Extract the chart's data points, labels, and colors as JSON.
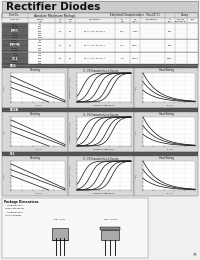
{
  "title": "Rectifier Diodes",
  "bg_color": "#f0f0f0",
  "title_bg": "#cccccc",
  "table_bg": "#ffffff",
  "graph_bg": "#e0e0e0",
  "graph_inner_bg": "#ffffff",
  "grid_color": "#aaaaaa",
  "graph_line_colors": [
    "#000000",
    "#222222",
    "#444444",
    "#666666",
    "#888888"
  ],
  "section_label_bg": "#555555",
  "section_label_color": "#ffffff",
  "page_number": "79",
  "section_labels": [
    "RO1",
    "RO2B",
    "R-1"
  ],
  "graph_row_titles": [
    [
      "Derating",
      "If - Vf Characteristics Curves",
      "Heat Rating"
    ],
    [
      "Derating",
      "If - Vf Characteristics Curves",
      "Heat Rating"
    ],
    [
      "Derating",
      "If - Vf Characteristics Curves",
      "Heat Rating"
    ]
  ],
  "table_col_headers_row1": [
    "",
    "Absolute Maximum Ratings",
    "",
    "",
    "Electrical Characteristics  (Ta=25°C)",
    "",
    "",
    "",
    "",
    "Cases",
    ""
  ],
  "table_col_headers_row2": [
    "Type No.",
    "VRRM",
    "IO",
    "IFSM",
    "Conditions",
    "VF",
    "IR",
    "Conditions",
    "trr",
    "TO-92S",
    "TO-220"
  ],
  "table_col_headers_row3": [
    "",
    "(V)",
    "(A)",
    "(A)",
    "",
    "(V)",
    "(μA)",
    "",
    "(ns)",
    "TO-220AB",
    "Pkg"
  ],
  "rows": [
    [
      "RO1A",
      "50",
      "",
      "",
      "",
      "",
      "",
      "",
      "",
      "",
      ""
    ],
    [
      "RO1B",
      "100",
      "1.0",
      "30",
      "Conditions 0.5A",
      "1.11",
      "1000",
      "at VRRM",
      "500",
      "○",
      "○"
    ],
    [
      "RO1D",
      "200",
      "",
      "",
      "",
      "",
      "",
      "",
      "",
      "",
      ""
    ],
    [
      "RO1G",
      "400",
      "",
      "",
      "",
      "",
      "",
      "",
      "",
      "",
      ""
    ],
    [
      "RO1J",
      "600",
      "",
      "",
      "",
      "",
      "",
      "",
      "",
      "",
      ""
    ],
    [
      "RO1K",
      "800",
      "",
      "",
      "",
      "",
      "",
      "",
      "",
      "",
      ""
    ],
    [
      "RO1M",
      "1000",
      "",
      "",
      "",
      "",
      "",
      "",
      "",
      "",
      ""
    ],
    [
      "RO2BA",
      "50",
      "",
      "",
      "",
      "",
      "",
      "",
      "",
      "",
      ""
    ],
    [
      "RO2BB",
      "100",
      "1.0",
      "30",
      "Conditions 0.5A",
      "1.11",
      "5000",
      "at VRRM",
      "500",
      "○",
      ""
    ],
    [
      "RO2BD",
      "200",
      "",
      "",
      "",
      "",
      "",
      "",
      "",
      "",
      ""
    ],
    [
      "RO2BG",
      "400",
      "",
      "",
      "",
      "",
      "",
      "",
      "",
      "",
      ""
    ],
    [
      "RO2BJ",
      "600",
      "",
      "",
      "",
      "",
      "",
      "",
      "",
      "",
      ""
    ],
    [
      "R-1A",
      "50",
      "",
      "",
      "",
      "",
      "",
      "",
      "",
      "",
      ""
    ],
    [
      "R-1B",
      "100",
      "1.5",
      "50",
      "Conditions 0.5A",
      "1.4",
      "10000",
      "at VRRM",
      "3000",
      "",
      "○"
    ],
    [
      "R-1D",
      "200",
      "",
      "",
      "",
      "",
      "",
      "",
      "",
      "",
      ""
    ],
    [
      "R-1G",
      "400",
      "",
      "",
      "",
      "",
      "",
      "",
      "",
      "",
      ""
    ],
    [
      "R-1J",
      "600",
      "",
      "",
      "",
      "",
      "",
      "",
      "",
      "",
      ""
    ]
  ]
}
